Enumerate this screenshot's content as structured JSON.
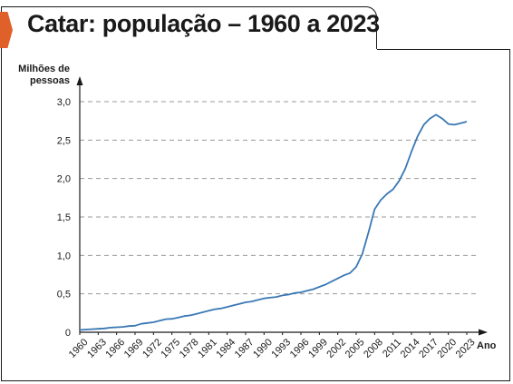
{
  "title": "Catar: população – 1960 a 2023",
  "chart_data": {
    "type": "line",
    "title": "Catar: população – 1960 a 2023",
    "ylabel_line1": "Milhões de",
    "ylabel_line2": "pessoas",
    "xlabel": "Ano",
    "ylim": [
      0,
      3.0
    ],
    "xlim": [
      1960,
      2023
    ],
    "yticks": [
      0,
      0.5,
      1.0,
      1.5,
      2.0,
      2.5,
      3.0
    ],
    "ytick_labels": [
      "0",
      "0,5",
      "1,0",
      "1,5",
      "2,0",
      "2,5",
      "3,0"
    ],
    "xticks": [
      1960,
      1963,
      1966,
      1969,
      1972,
      1975,
      1978,
      1981,
      1984,
      1987,
      1990,
      1993,
      1996,
      1999,
      2002,
      2005,
      2008,
      2011,
      2014,
      2017,
      2020,
      2023
    ],
    "xtick_labels": [
      "1960",
      "1963",
      "1966",
      "1969",
      "1972",
      "1975",
      "1978",
      "1981",
      "1984",
      "1987",
      "1990",
      "1993",
      "1996",
      "1999",
      "2002",
      "2005",
      "2008",
      "2011",
      "2014",
      "2017",
      "2020",
      "2023"
    ],
    "grid": true,
    "line_color": "#3a78b5",
    "series": [
      {
        "x": [
          1960,
          1961,
          1962,
          1963,
          1964,
          1965,
          1966,
          1967,
          1968,
          1969,
          1970,
          1971,
          1972,
          1973,
          1974,
          1975,
          1976,
          1977,
          1978,
          1979,
          1980,
          1981,
          1982,
          1983,
          1984,
          1985,
          1986,
          1987,
          1988,
          1989,
          1990,
          1991,
          1992,
          1993,
          1994,
          1995,
          1996,
          1997,
          1998,
          1999,
          2000,
          2001,
          2002,
          2003,
          2004,
          2005,
          2006,
          2007,
          2008,
          2009,
          2010,
          2011,
          2012,
          2013,
          2014,
          2015,
          2016,
          2017,
          2018,
          2019,
          2020,
          2021,
          2022,
          2023
        ],
        "values": [
          0.03,
          0.035,
          0.04,
          0.045,
          0.05,
          0.06,
          0.065,
          0.07,
          0.08,
          0.085,
          0.11,
          0.12,
          0.13,
          0.15,
          0.17,
          0.175,
          0.19,
          0.21,
          0.22,
          0.24,
          0.26,
          0.28,
          0.3,
          0.31,
          0.33,
          0.35,
          0.37,
          0.39,
          0.4,
          0.42,
          0.44,
          0.45,
          0.46,
          0.48,
          0.49,
          0.51,
          0.52,
          0.54,
          0.56,
          0.59,
          0.62,
          0.66,
          0.7,
          0.74,
          0.77,
          0.85,
          1.02,
          1.3,
          1.6,
          1.72,
          1.8,
          1.86,
          1.97,
          2.13,
          2.35,
          2.55,
          2.7,
          2.78,
          2.83,
          2.78,
          2.71,
          2.7,
          2.72,
          2.74
        ]
      }
    ]
  }
}
